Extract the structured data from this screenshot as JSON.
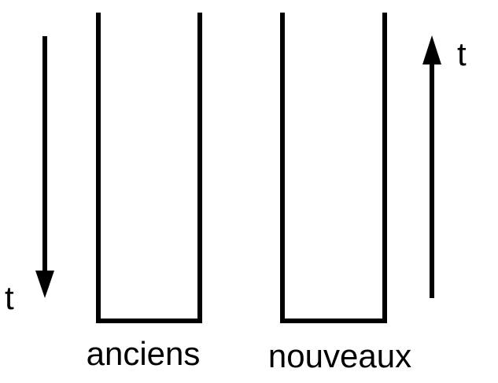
{
  "left_arrow": {
    "label": "t",
    "direction": "down"
  },
  "right_arrow": {
    "label": "t",
    "direction": "up"
  },
  "containers": [
    {
      "label": "anciens"
    },
    {
      "label": "nouveaux"
    }
  ],
  "colors": {
    "stroke": "#000000",
    "background": "#ffffff"
  }
}
